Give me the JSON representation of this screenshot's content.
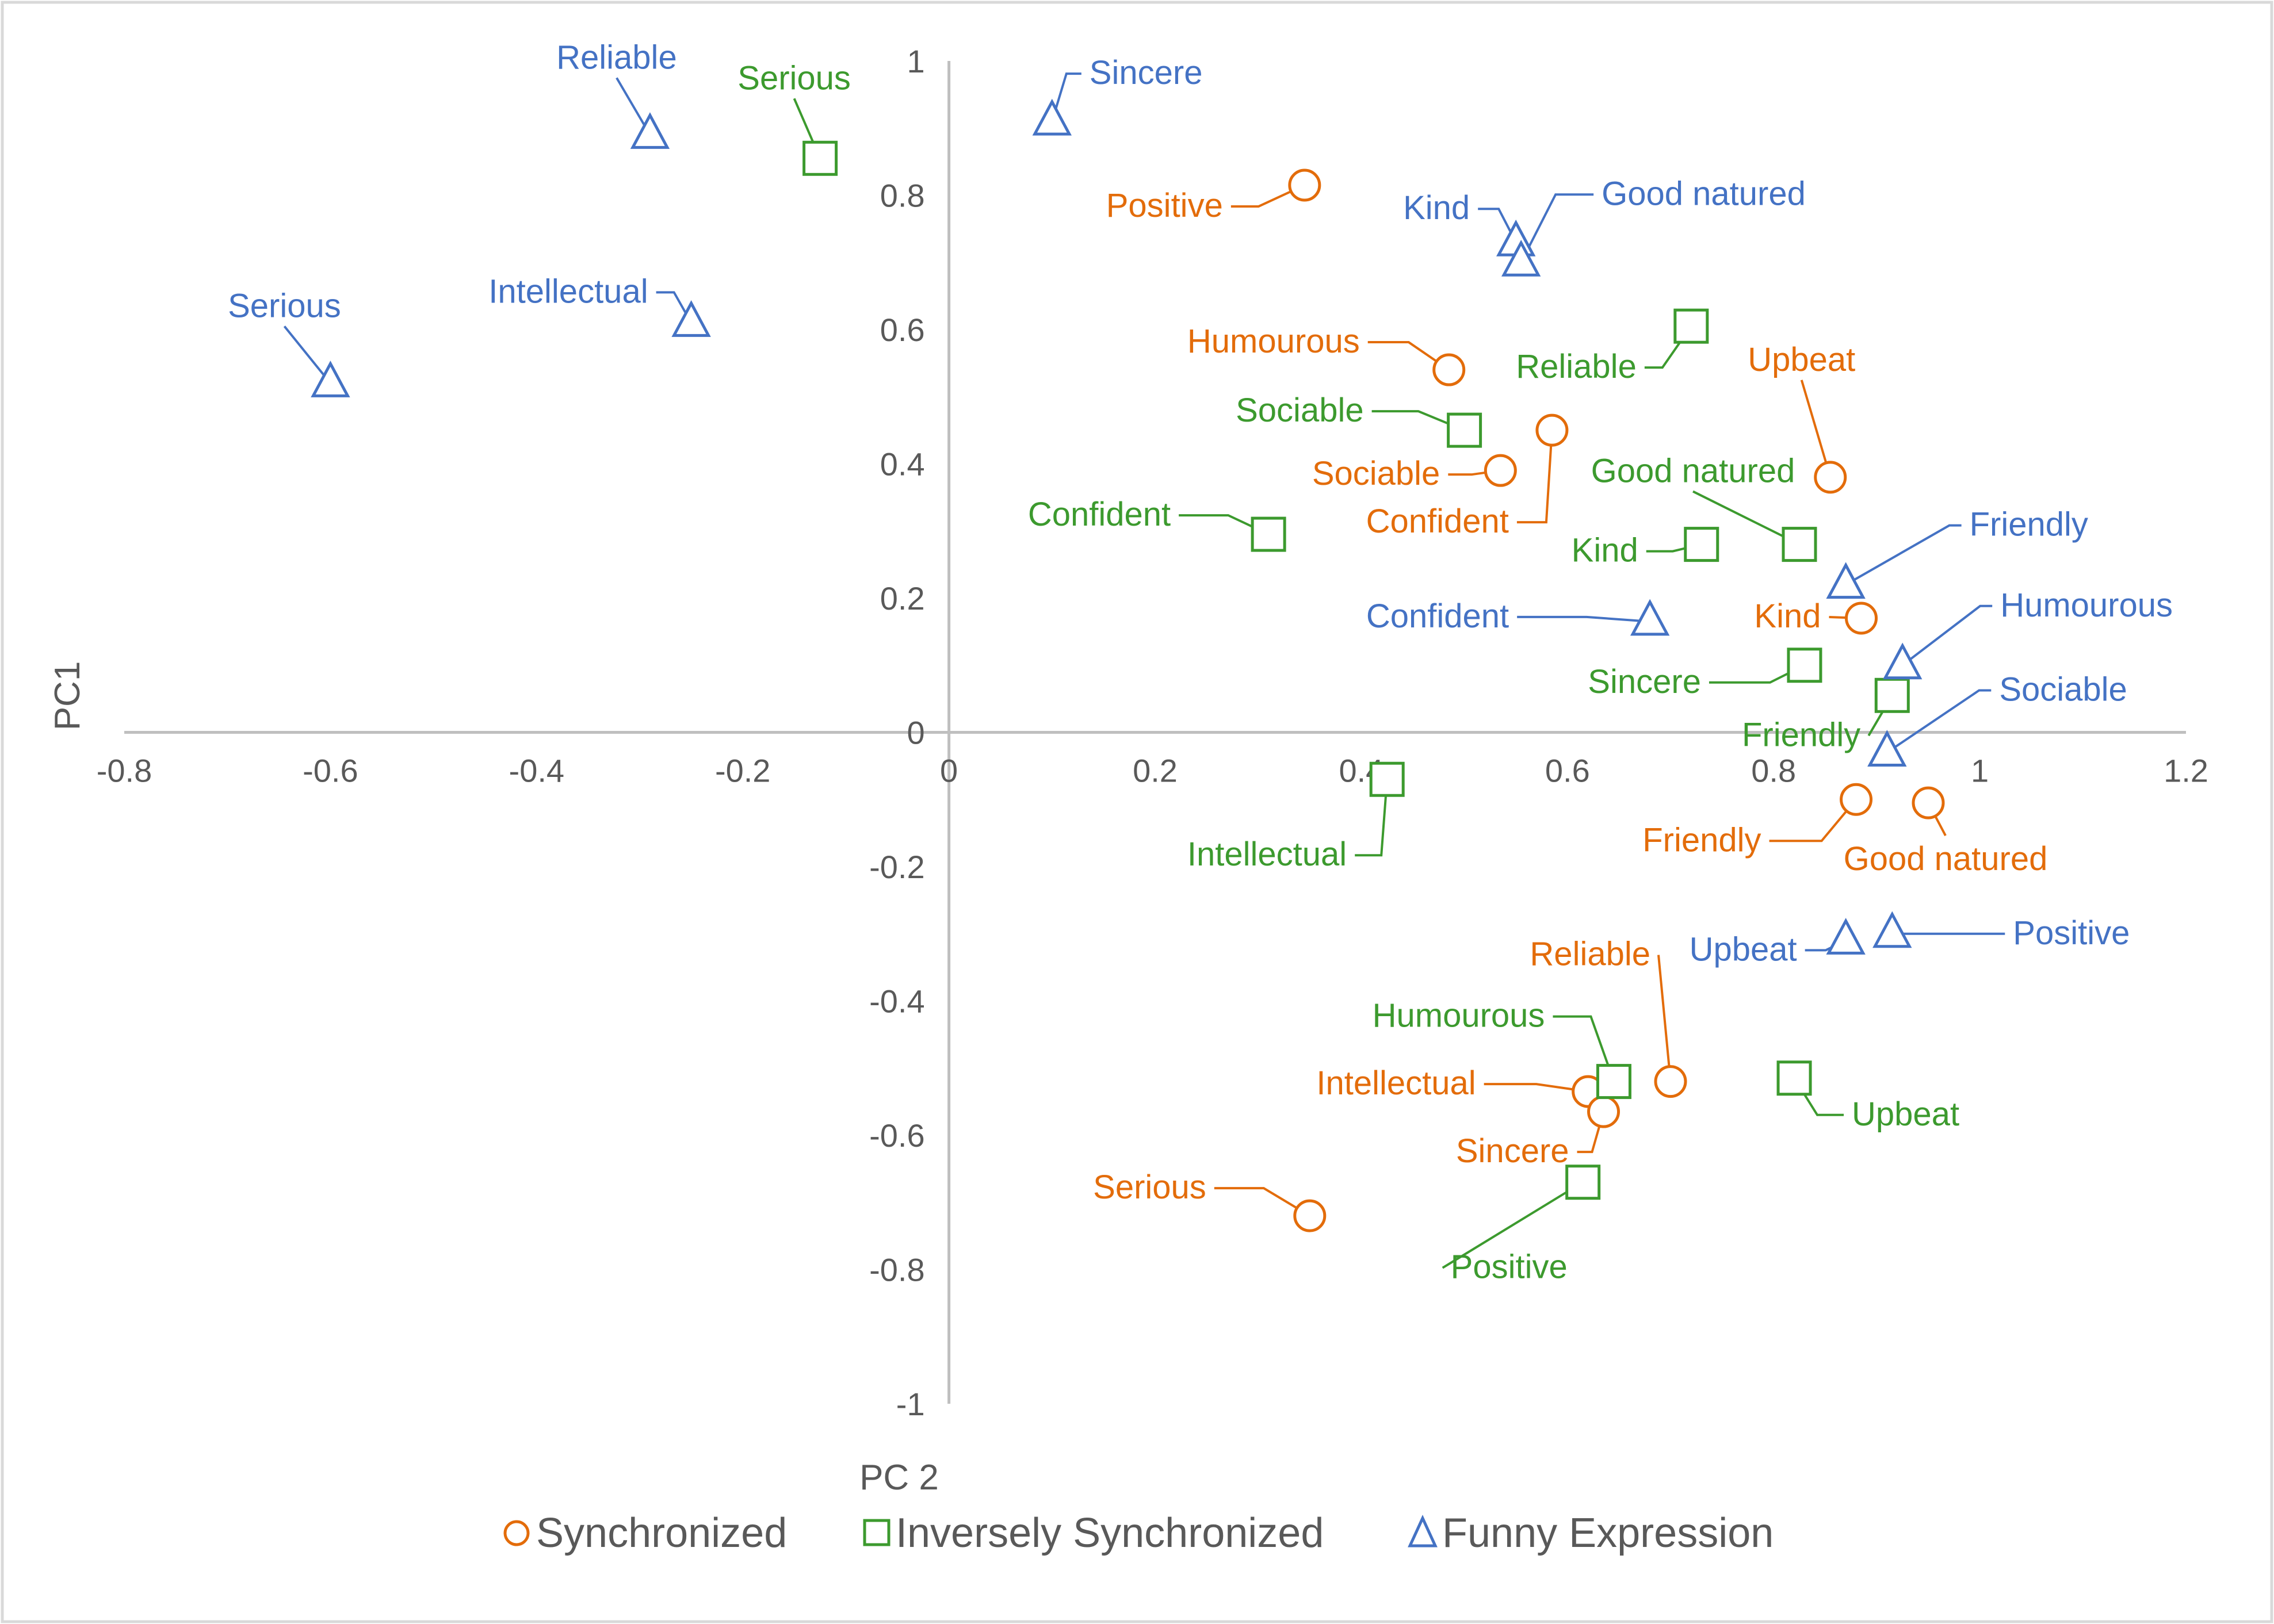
{
  "chart_data": {
    "type": "scatter",
    "title": "",
    "xlabel": "PC 2",
    "ylabel": "PC1",
    "xlim": [
      -0.8,
      1.2
    ],
    "ylim": [
      -1,
      1
    ],
    "xticks": [
      -0.8,
      -0.6,
      -0.4,
      -0.2,
      0,
      0.2,
      0.4,
      0.6,
      0.8,
      1,
      1.2
    ],
    "yticks": [
      -1,
      -0.8,
      -0.6,
      -0.4,
      -0.2,
      0,
      0.2,
      0.4,
      0.6,
      0.8,
      1
    ],
    "xtick_labels": [
      "-0.8",
      "-0.6",
      "-0.4",
      "-0.2",
      "0",
      "0.2",
      "0.4",
      "0.6",
      "0.8",
      "1",
      "1.2"
    ],
    "ytick_labels": [
      "-1",
      "-0.8",
      "-0.6",
      "-0.4",
      "-0.2",
      "0",
      "0.2",
      "0.4",
      "0.6",
      "0.8",
      "1"
    ],
    "grid": false,
    "legend_position": "bottom",
    "series": [
      {
        "name": "Synchronized",
        "marker": "circle",
        "color": "#E36C0A",
        "points": [
          {
            "label": "Positive",
            "x": 0.345,
            "y": 0.815
          },
          {
            "label": "Humourous",
            "x": 0.485,
            "y": 0.54
          },
          {
            "label": "Confident",
            "x": 0.585,
            "y": 0.45
          },
          {
            "label": "Sociable",
            "x": 0.535,
            "y": 0.39
          },
          {
            "label": "Upbeat",
            "x": 0.855,
            "y": 0.38
          },
          {
            "label": "Kind",
            "x": 0.885,
            "y": 0.17
          },
          {
            "label": "Friendly",
            "x": 0.88,
            "y": -0.1
          },
          {
            "label": "Good natured",
            "x": 0.95,
            "y": -0.105
          },
          {
            "label": "Reliable",
            "x": 0.7,
            "y": -0.52
          },
          {
            "label": "Intellectual",
            "x": 0.62,
            "y": -0.535
          },
          {
            "label": "Sincere",
            "x": 0.635,
            "y": -0.565
          },
          {
            "label": "Serious",
            "x": 0.35,
            "y": -0.72
          }
        ]
      },
      {
        "name": "Inversely Synchronized",
        "marker": "square",
        "color": "#3C9A2E",
        "points": [
          {
            "label": "Serious",
            "x": -0.125,
            "y": 0.855
          },
          {
            "label": "Reliable",
            "x": 0.72,
            "y": 0.605
          },
          {
            "label": "Sociable",
            "x": 0.5,
            "y": 0.45
          },
          {
            "label": "Confident",
            "x": 0.31,
            "y": 0.295
          },
          {
            "label": "Kind",
            "x": 0.73,
            "y": 0.28
          },
          {
            "label": "Good natured",
            "x": 0.825,
            "y": 0.28
          },
          {
            "label": "Sincere",
            "x": 0.83,
            "y": 0.1
          },
          {
            "label": "Friendly",
            "x": 0.915,
            "y": 0.055
          },
          {
            "label": "Intellectual",
            "x": 0.425,
            "y": -0.07
          },
          {
            "label": "Humourous",
            "x": 0.645,
            "y": -0.52
          },
          {
            "label": "Upbeat",
            "x": 0.82,
            "y": -0.515
          },
          {
            "label": "Positive",
            "x": 0.615,
            "y": -0.67
          }
        ]
      },
      {
        "name": "Funny Expression",
        "marker": "triangle",
        "color": "#4472C4",
        "points": [
          {
            "label": "Reliable",
            "x": -0.29,
            "y": 0.89
          },
          {
            "label": "Sincere",
            "x": 0.1,
            "y": 0.91
          },
          {
            "label": "Kind",
            "x": 0.55,
            "y": 0.73
          },
          {
            "label": "Good natured",
            "x": 0.555,
            "y": 0.7
          },
          {
            "label": "Intellectual",
            "x": -0.25,
            "y": 0.61
          },
          {
            "label": "Serious",
            "x": -0.6,
            "y": 0.52
          },
          {
            "label": "Friendly",
            "x": 0.87,
            "y": 0.22
          },
          {
            "label": "Confident",
            "x": 0.68,
            "y": 0.165
          },
          {
            "label": "Humourous",
            "x": 0.925,
            "y": 0.1
          },
          {
            "label": "Sociable",
            "x": 0.91,
            "y": -0.03
          },
          {
            "label": "Upbeat",
            "x": 0.87,
            "y": -0.31
          },
          {
            "label": "Positive",
            "x": 0.915,
            "y": -0.3
          }
        ]
      }
    ]
  }
}
